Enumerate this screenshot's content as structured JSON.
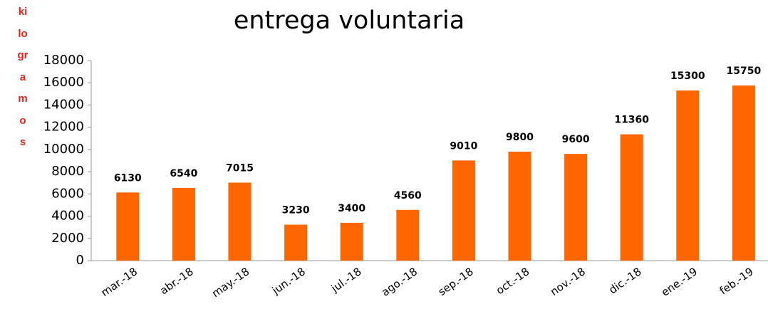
{
  "chart_data": {
    "type": "bar",
    "title": "entrega voluntaria",
    "y_label": "kilogramos",
    "categories": [
      "mar.-18",
      "abr.-18",
      "may.-18",
      "jun.-18",
      "jul.-18",
      "ago.-18",
      "sep.-18",
      "oct.-18",
      "nov.-18",
      "dic.-18",
      "ene.-19",
      "feb.-19"
    ],
    "values": [
      6130,
      6540,
      7015,
      3230,
      3400,
      4560,
      9010,
      9800,
      9600,
      11360,
      15300,
      15750
    ],
    "color": "#ff6600",
    "ylim": [
      0,
      18000
    ],
    "yticks": [
      0,
      2000,
      4000,
      6000,
      8000,
      10000,
      12000,
      14000,
      16000,
      18000
    ],
    "grid": false
  }
}
